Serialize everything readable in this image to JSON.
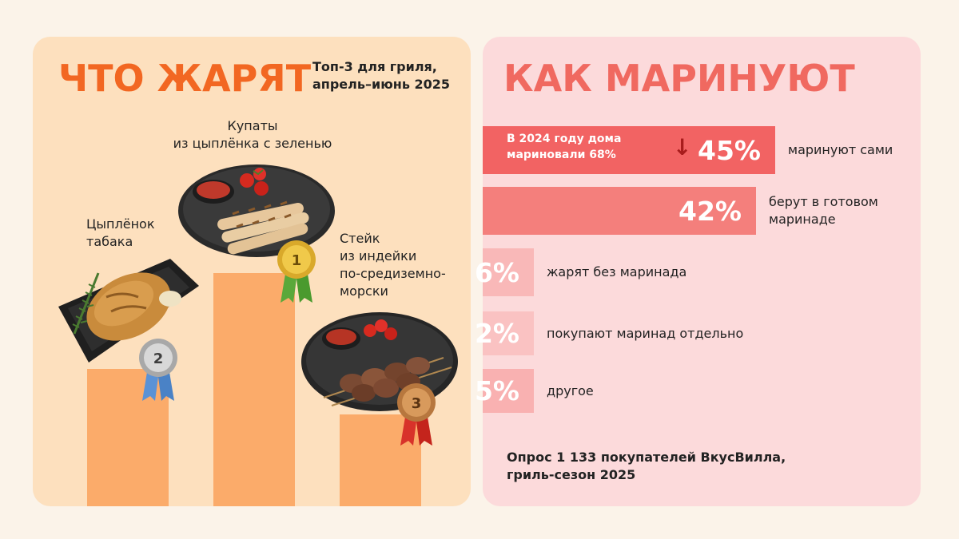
{
  "left": {
    "title": "ЧТО ЖАРЯТ",
    "subtitle_lines": [
      "Топ-3 для гриля,",
      "апрель–июнь 2025"
    ],
    "podium": [
      {
        "rank": "1",
        "label_lines": [
          "Купаты",
          "из цыплёнка с зеленью"
        ],
        "medal": "gold"
      },
      {
        "rank": "2",
        "label_lines": [
          "Цыплёнок",
          "табака"
        ],
        "medal": "silver"
      },
      {
        "rank": "3",
        "label_lines": [
          "Стейк",
          "из индейки",
          "по-средиземно-",
          "морски"
        ],
        "medal": "bronze"
      }
    ]
  },
  "right": {
    "title": "КАК МАРИНУЮТ",
    "note_lines": [
      "В 2024 году дома",
      "мариновали 68%"
    ],
    "arrow": "↓",
    "footer_lines": [
      "Опрос 1 133 покупателей ВкусВилла,",
      "гриль-сезон 2025"
    ]
  },
  "colors": {
    "accent_orange": "#f26722",
    "accent_coral": "#f06960",
    "bar_1": "#f26363",
    "bar_2": "#f47f7c",
    "bar_3": "#f9b8b8",
    "bar_4": "#fac2c2",
    "bar_5": "#f9b1b1",
    "podium": "#fbab6a",
    "panel_left": "#fde0be",
    "panel_right": "#fcdadb"
  },
  "chart_data": {
    "type": "bar",
    "orientation": "horizontal",
    "categories": [
      "маринуют сами",
      "берут в готовом маринаде",
      "жарят без маринада",
      "покупают маринад отдельно",
      "другое"
    ],
    "values": [
      45,
      42,
      6,
      2,
      5
    ],
    "value_labels": [
      "45%",
      "42%",
      "6%",
      "2%",
      "5%"
    ],
    "category_lines": [
      [
        "маринуют сами"
      ],
      [
        "берут в готовом",
        "маринаде"
      ],
      [
        "жарят без маринада"
      ],
      [
        "покупают маринад отдельно"
      ],
      [
        "другое"
      ]
    ]
  }
}
